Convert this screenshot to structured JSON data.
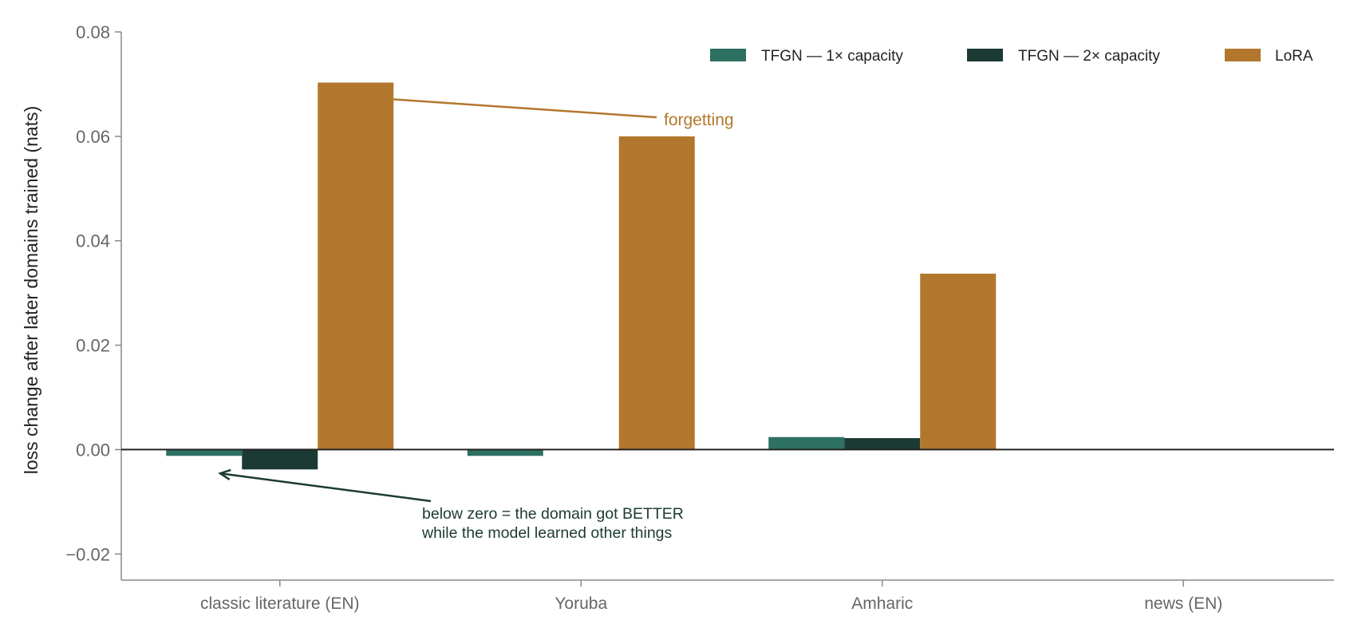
{
  "chart_data": {
    "type": "bar",
    "title": "",
    "xlabel": "",
    "ylabel": "loss change after later domains trained (nats)",
    "ylim": [
      -0.025,
      0.08
    ],
    "yticks": [
      -0.02,
      0.0,
      0.02,
      0.04,
      0.06,
      0.08
    ],
    "ytick_labels": [
      "−0.02",
      "0.00",
      "0.02",
      "0.04",
      "0.06",
      "0.08"
    ],
    "categories": [
      "classic literature (EN)",
      "Yoruba",
      "Amharic",
      "news (EN)"
    ],
    "series": [
      {
        "name": "TFGN — 1× capacity",
        "color": "#2e7062",
        "values": [
          -0.0012,
          -0.0012,
          0.0024,
          null
        ]
      },
      {
        "name": "TFGN — 2× capacity",
        "color": "#1c3a34",
        "values": [
          -0.0038,
          null,
          0.0022,
          null
        ]
      },
      {
        "name": "LoRA",
        "color": "#b2772c",
        "values": [
          0.0703,
          0.06,
          0.0337,
          null
        ]
      }
    ],
    "legend_position": "top-right",
    "grid": false,
    "annotations": [
      {
        "text": "forgetting",
        "color": "#b2772c",
        "points_to": {
          "category": "classic literature (EN)",
          "series": "LoRA"
        }
      },
      {
        "text": "below zero = the domain got BETTER\nwhile the model learned other things",
        "color": "#1c3a34",
        "points_to": {
          "category": "classic literature (EN)",
          "series": "TFGN — 1× capacity"
        }
      }
    ]
  }
}
